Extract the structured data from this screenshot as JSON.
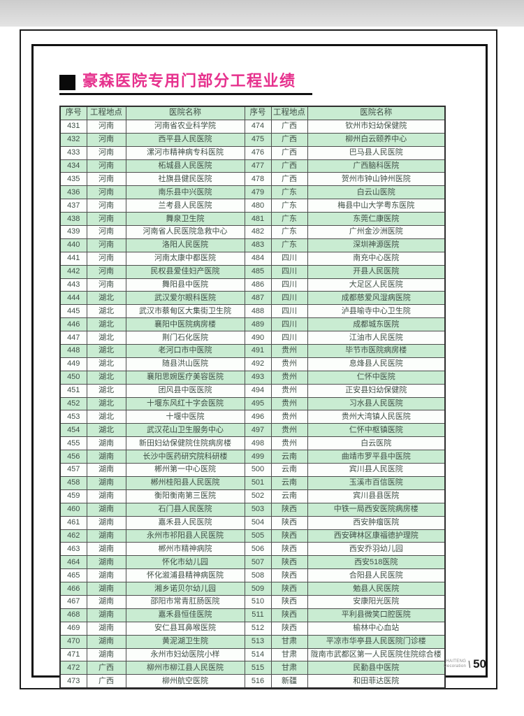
{
  "page": {
    "title": "豪森医院专用门部分工程业绩",
    "page_number": "50",
    "brand_line1": "HAITENG",
    "brand_line2": "Decoration"
  },
  "colors": {
    "title_pink": "#e6318d",
    "stripe_green": "#c9ecd2",
    "row_white": "#fcfefc",
    "cell_text": "#3f4f46",
    "frame_black": "#111111"
  },
  "table": {
    "headers": [
      "序号",
      "工程地点",
      "医院名称",
      "序号",
      "工程地点",
      "医院名称"
    ],
    "rows": [
      [
        "431",
        "河南",
        "河南省农业科学院",
        "474",
        "广西",
        "钦州市妇幼保健院"
      ],
      [
        "432",
        "河南",
        "西平县人民医院",
        "475",
        "广西",
        "柳州白云颐养中心"
      ],
      [
        "433",
        "河南",
        "漯河市精神病专科医院",
        "476",
        "广西",
        "巴马县人民医院"
      ],
      [
        "434",
        "河南",
        "柘城县人民医院",
        "477",
        "广西",
        "广西脑科医院"
      ],
      [
        "435",
        "河南",
        "社旗县健民医院",
        "478",
        "广西",
        "贺州市钟山钟州医院"
      ],
      [
        "436",
        "河南",
        "南乐县中兴医院",
        "479",
        "广东",
        "白云山医院"
      ],
      [
        "437",
        "河南",
        "兰考县人民医院",
        "480",
        "广东",
        "梅县中山大学粤东医院"
      ],
      [
        "438",
        "河南",
        "舞泉卫生院",
        "481",
        "广东",
        "东莞仁康医院"
      ],
      [
        "439",
        "河南",
        "河南省人民医院急救中心",
        "482",
        "广东",
        "广州金沙洲医院"
      ],
      [
        "440",
        "河南",
        "洛阳人民医院",
        "483",
        "广东",
        "深圳神源医院"
      ],
      [
        "441",
        "河南",
        "河南太康中都医院",
        "484",
        "四川",
        "南充中心医院"
      ],
      [
        "442",
        "河南",
        "民权县爱佳妇产医院",
        "485",
        "四川",
        "开县人民医院"
      ],
      [
        "443",
        "河南",
        "舞阳县中医院",
        "486",
        "四川",
        "大足区人民医院"
      ],
      [
        "444",
        "湖北",
        "武汉爱尔眼科医院",
        "487",
        "四川",
        "成都慈爱风湿病医院"
      ],
      [
        "445",
        "湖北",
        "武汉市蔡甸区大集街卫生院",
        "488",
        "四川",
        "泸县喻寺中心卫生院"
      ],
      [
        "446",
        "湖北",
        "襄阳中医院病房楼",
        "489",
        "四川",
        "成都城东医院"
      ],
      [
        "447",
        "湖北",
        "荆门石化医院",
        "490",
        "四川",
        "江油市人民医院"
      ],
      [
        "448",
        "湖北",
        "老河口市中医院",
        "491",
        "贵州",
        "毕节市医院病房楼"
      ],
      [
        "449",
        "湖北",
        "随县洪山医院",
        "492",
        "贵州",
        "息烽县人民医院"
      ],
      [
        "450",
        "湖北",
        "襄阳思婉医疗美容医院",
        "493",
        "贵州",
        "仁怀中医院"
      ],
      [
        "451",
        "湖北",
        "团风县中医医院",
        "494",
        "贵州",
        "正安县妇幼保健院"
      ],
      [
        "452",
        "湖北",
        "十堰东风红十字会医院",
        "495",
        "贵州",
        "习水县人民医院"
      ],
      [
        "453",
        "湖北",
        "十堰中医院",
        "496",
        "贵州",
        "贵州大湾镇人民医院"
      ],
      [
        "454",
        "湖北",
        "武汉花山卫生服务中心",
        "497",
        "贵州",
        "仁怀中枢镇医院"
      ],
      [
        "455",
        "湖南",
        "新田妇幼保健院住院病房楼",
        "498",
        "贵州",
        "白云医院"
      ],
      [
        "456",
        "湖南",
        "长沙中医药研究院科研楼",
        "499",
        "云南",
        "曲靖市罗平县中医院"
      ],
      [
        "457",
        "湖南",
        "郴州第一中心医院",
        "500",
        "云南",
        "宾川县人民医院"
      ],
      [
        "458",
        "湖南",
        "郴州桂阳县人民医院",
        "501",
        "云南",
        "玉溪市百信医院"
      ],
      [
        "459",
        "湖南",
        "衡阳衡南第三医院",
        "502",
        "云南",
        "宾川县县医院"
      ],
      [
        "460",
        "湖南",
        "石门县人民医院",
        "503",
        "陕西",
        "中铁一局西安医院病房楼"
      ],
      [
        "461",
        "湖南",
        "嘉禾县人民医院",
        "504",
        "陕西",
        "西安肿瘤医院"
      ],
      [
        "462",
        "湖南",
        "永州市祁阳县人民医院",
        "505",
        "陕西",
        "西安碑林区康福德护理院"
      ],
      [
        "463",
        "湖南",
        "郴州市精神病院",
        "506",
        "陕西",
        "西安乔羽幼儿园"
      ],
      [
        "464",
        "湖南",
        "怀化市幼儿园",
        "507",
        "陕西",
        "西安518医院"
      ],
      [
        "465",
        "湖南",
        "怀化溆浦县精神病医院",
        "508",
        "陕西",
        "合阳县人民医院"
      ],
      [
        "466",
        "湖南",
        "湘乡诺贝尔幼儿园",
        "509",
        "陕西",
        "勉县人民医院"
      ],
      [
        "467",
        "湖南",
        "邵阳市常青肛肠医院",
        "510",
        "陕西",
        "安康阳光医院"
      ],
      [
        "468",
        "湖南",
        "嘉禾县恒佳医院",
        "511",
        "陕西",
        "平利县微笑口腔医院"
      ],
      [
        "469",
        "湖南",
        "安仁县耳鼻喉医院",
        "512",
        "陕西",
        "榆林中心血站"
      ],
      [
        "470",
        "湖南",
        "黄泥湖卫生院",
        "513",
        "甘肃",
        "平凉市华亭县人民医院门诊楼"
      ],
      [
        "471",
        "湖南",
        "永州市妇幼医院小样",
        "514",
        "甘肃",
        "陇南市武都区第一人民医院住院综合楼"
      ],
      [
        "472",
        "广西",
        "柳州市柳江县人民医院",
        "515",
        "甘肃",
        "民勤县中医院"
      ],
      [
        "473",
        "广西",
        "柳州航空医院",
        "516",
        "新疆",
        "和田菲达医院"
      ]
    ]
  }
}
